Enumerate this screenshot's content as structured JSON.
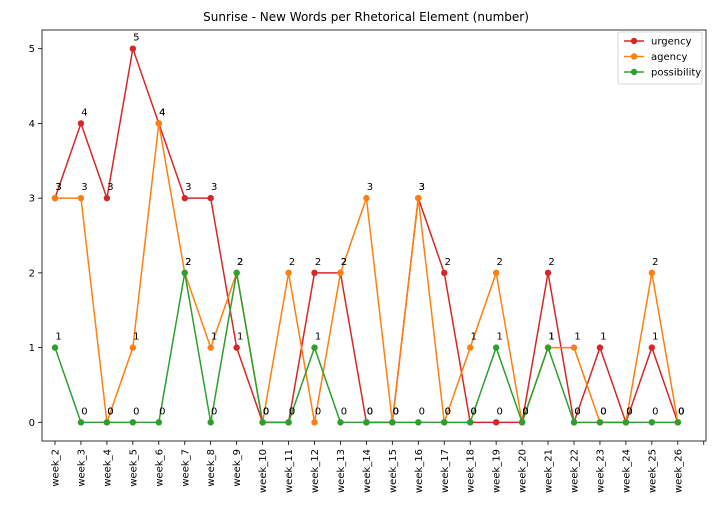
{
  "chart_data": {
    "type": "line",
    "title": "Sunrise - New Words per Rhetorical Element (number)",
    "xlabel": "",
    "ylabel": "",
    "categories": [
      "week_2",
      "week_3",
      "week_4",
      "week_5",
      "week_6",
      "week_7",
      "week_8",
      "week_9",
      "week_10",
      "week_11",
      "week_12",
      "week_13",
      "week_14",
      "week_15",
      "week_16",
      "week_17",
      "week_18",
      "week_19",
      "week_20",
      "week_21",
      "week_22",
      "week_23",
      "week_24",
      "week_25",
      "week_26"
    ],
    "y_ticks": [
      "0",
      "1",
      "2",
      "3",
      "4",
      "5"
    ],
    "ylim": [
      -0.25,
      5.25
    ],
    "grid": false,
    "legend_position": "top-right",
    "data_labels": true,
    "series": [
      {
        "name": "urgency",
        "color": "#d62728",
        "values": [
          3,
          4,
          3,
          5,
          4,
          3,
          3,
          1,
          0,
          0,
          2,
          2,
          0,
          0,
          3,
          2,
          0,
          0,
          0,
          2,
          0,
          1,
          0,
          1,
          0
        ]
      },
      {
        "name": "agency",
        "color": "#ff7f0e",
        "values": [
          3,
          3,
          0,
          1,
          4,
          2,
          1,
          2,
          0,
          2,
          0,
          2,
          3,
          0,
          3,
          0,
          1,
          2,
          0,
          1,
          1,
          0,
          0,
          2,
          0
        ]
      },
      {
        "name": "possibility",
        "color": "#2ca02c",
        "values": [
          1,
          0,
          0,
          0,
          0,
          2,
          0,
          2,
          0,
          0,
          1,
          0,
          0,
          0,
          0,
          0,
          0,
          1,
          0,
          1,
          0,
          0,
          0,
          0,
          0
        ]
      }
    ]
  }
}
